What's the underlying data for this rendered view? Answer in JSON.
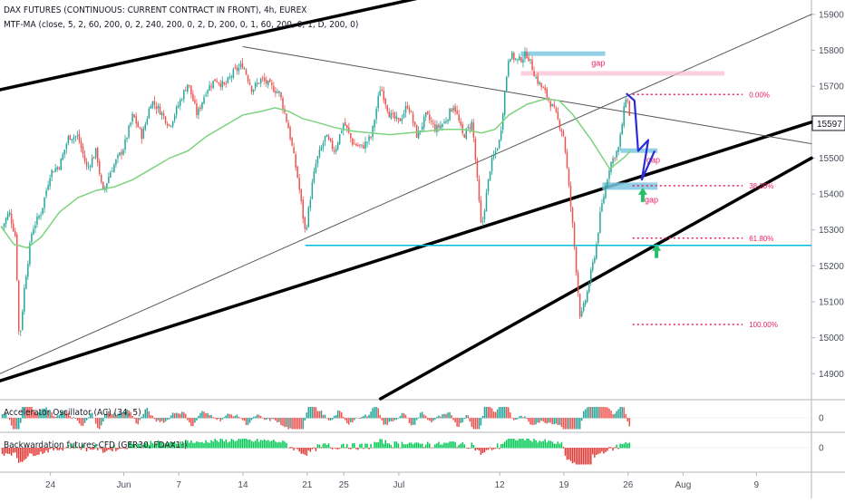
{
  "chart_data": {
    "type": "candlestick",
    "title": "DAX FUTURES (CONTINUOUS: CURRENT CONTRACT IN FRONT), 4h, EUREX",
    "indicator_label": "MTF-MA (close, 5, 2, 60, 200, 0, 2, 240, 200, 0, 2, D, 200, 0, 1, 60, 200, 0, 1, D, 200, 0)",
    "y_ticks": [
      14900,
      15000,
      15100,
      15200,
      15300,
      15400,
      15500,
      15600,
      15700,
      15800,
      15900
    ],
    "ylim": [
      14830,
      15940
    ],
    "x_ticks": [
      {
        "label": "24",
        "day": 24
      },
      {
        "label": "Jun",
        "day": 32
      },
      {
        "label": "7",
        "day": 38
      },
      {
        "label": "14",
        "day": 45
      },
      {
        "label": "21",
        "day": 52
      },
      {
        "label": "25",
        "day": 56
      },
      {
        "label": "Jul",
        "day": 62
      },
      {
        "label": "12",
        "day": 73
      },
      {
        "label": "19",
        "day": 80
      },
      {
        "label": "26",
        "day": 87
      },
      {
        "label": "Aug",
        "day": 93
      },
      {
        "label": "9",
        "day": 101
      }
    ],
    "xlim": [
      18.5,
      107
    ],
    "last_price": "15597",
    "price_path": [
      [
        18.6,
        15300
      ],
      [
        19.5,
        15350
      ],
      [
        20.2,
        15280
      ],
      [
        20.6,
        14980
      ],
      [
        21.2,
        15150
      ],
      [
        22,
        15300
      ],
      [
        23,
        15350
      ],
      [
        24,
        15460
      ],
      [
        25,
        15480
      ],
      [
        26,
        15560
      ],
      [
        27,
        15560
      ],
      [
        28,
        15470
      ],
      [
        29,
        15520
      ],
      [
        29.7,
        15400
      ],
      [
        30.5,
        15460
      ],
      [
        32,
        15530
      ],
      [
        33,
        15620
      ],
      [
        34,
        15560
      ],
      [
        35,
        15660
      ],
      [
        36,
        15630
      ],
      [
        37,
        15590
      ],
      [
        38,
        15650
      ],
      [
        39,
        15710
      ],
      [
        40,
        15620
      ],
      [
        41,
        15690
      ],
      [
        42,
        15720
      ],
      [
        43,
        15700
      ],
      [
        44,
        15740
      ],
      [
        45,
        15760
      ],
      [
        46,
        15690
      ],
      [
        47,
        15720
      ],
      [
        48,
        15700
      ],
      [
        49,
        15680
      ],
      [
        50,
        15580
      ],
      [
        51,
        15440
      ],
      [
        51.8,
        15290
      ],
      [
        52.5,
        15420
      ],
      [
        53,
        15490
      ],
      [
        54,
        15560
      ],
      [
        55,
        15520
      ],
      [
        56,
        15600
      ],
      [
        57,
        15540
      ],
      [
        58,
        15530
      ],
      [
        59,
        15560
      ],
      [
        60,
        15700
      ],
      [
        61,
        15620
      ],
      [
        62,
        15600
      ],
      [
        63,
        15650
      ],
      [
        64,
        15560
      ],
      [
        65,
        15620
      ],
      [
        66,
        15580
      ],
      [
        67,
        15600
      ],
      [
        68,
        15650
      ],
      [
        69,
        15560
      ],
      [
        70,
        15600
      ],
      [
        71,
        15300
      ],
      [
        72,
        15480
      ],
      [
        73,
        15550
      ],
      [
        74,
        15790
      ],
      [
        75,
        15770
      ],
      [
        76,
        15790
      ],
      [
        77,
        15720
      ],
      [
        78,
        15680
      ],
      [
        79,
        15630
      ],
      [
        80,
        15560
      ],
      [
        81,
        15300
      ],
      [
        81.8,
        15050
      ],
      [
        82.5,
        15120
      ],
      [
        83.5,
        15250
      ],
      [
        84,
        15350
      ],
      [
        85,
        15480
      ],
      [
        86,
        15530
      ],
      [
        86.8,
        15680
      ],
      [
        87.3,
        15597
      ]
    ],
    "ma_path": [
      [
        18.6,
        15310
      ],
      [
        20,
        15260
      ],
      [
        21.5,
        15250
      ],
      [
        23,
        15280
      ],
      [
        25,
        15350
      ],
      [
        27,
        15390
      ],
      [
        29,
        15410
      ],
      [
        31,
        15420
      ],
      [
        33,
        15440
      ],
      [
        35,
        15470
      ],
      [
        37,
        15500
      ],
      [
        39,
        15520
      ],
      [
        41,
        15560
      ],
      [
        43,
        15590
      ],
      [
        45,
        15620
      ],
      [
        47,
        15630
      ],
      [
        48.5,
        15640
      ],
      [
        50,
        15630
      ],
      [
        51.5,
        15610
      ],
      [
        53,
        15600
      ],
      [
        55,
        15585
      ],
      [
        57,
        15575
      ],
      [
        59,
        15570
      ],
      [
        61,
        15565
      ],
      [
        63,
        15570
      ],
      [
        65,
        15575
      ],
      [
        67,
        15580
      ],
      [
        69,
        15580
      ],
      [
        71,
        15570
      ],
      [
        72.5,
        15580
      ],
      [
        74,
        15620
      ],
      [
        76,
        15650
      ],
      [
        78,
        15665
      ],
      [
        79.5,
        15660
      ],
      [
        81,
        15620
      ],
      [
        83,
        15550
      ],
      [
        85,
        15470
      ],
      [
        86.5,
        15500
      ],
      [
        87.3,
        15520
      ]
    ],
    "fib_levels": [
      {
        "label": "0.00%",
        "price": 15677,
        "color": "#e91e63"
      },
      {
        "label": "38.20%",
        "price": 15423,
        "color": "#e91e63"
      },
      {
        "label": "61.80%",
        "price": 15277,
        "color": "#e91e63"
      },
      {
        "label": "100.00%",
        "price": 15037,
        "color": "#e91e63"
      }
    ],
    "gap_labels": [
      "gap",
      "gap",
      "gap"
    ],
    "oscillator_panes": [
      {
        "label": "Accelerator Oscillator (AC) (34, 5)",
        "zero_label": "0"
      },
      {
        "label": "Backwardation futures-CFD (GER30, FDAX1!)",
        "zero_label": "0"
      }
    ],
    "colors": {
      "up": "#26a69a",
      "down": "#ef5350",
      "ma": "#7ed37e",
      "trendline": "#000000",
      "cyan_line": "#00bcd4",
      "gap_box": "#7ec8e3",
      "gap_box_pink": "#f8bbd0",
      "projection": "#2b2bd8",
      "arrow": "#26c06a",
      "fib": "#e91e63"
    }
  }
}
